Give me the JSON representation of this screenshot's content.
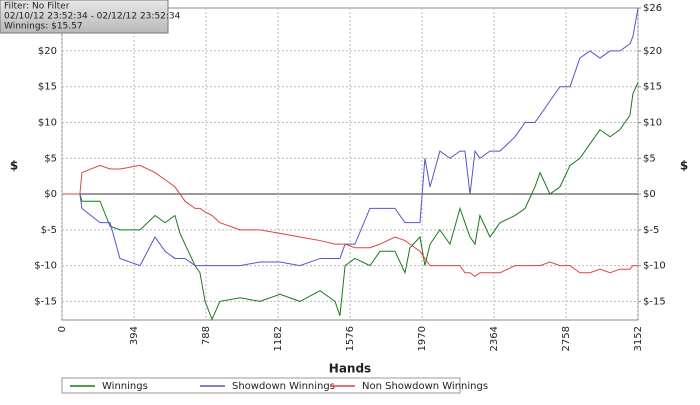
{
  "chart_data": {
    "type": "line",
    "info": [
      "Filter: No Filter",
      "02/10/12 23:52:34 - 02/12/12 23:52:34",
      "Winnings: $15.57"
    ],
    "xlabel": "Hands",
    "ylabel": "$",
    "y2label": "$",
    "x": [
      0,
      98,
      109,
      208,
      263,
      317,
      427,
      509,
      564,
      618,
      646,
      673,
      728,
      755,
      783,
      821,
      864,
      974,
      1083,
      1193,
      1302,
      1412,
      1494,
      1521,
      1549,
      1603,
      1685,
      1740,
      1822,
      1877,
      1904,
      1959,
      1986,
      2014,
      2068,
      2123,
      2178,
      2205,
      2233,
      2260,
      2287,
      2342,
      2397,
      2479,
      2534,
      2588,
      2616,
      2670,
      2725,
      2780,
      2834,
      2889,
      2944,
      2999,
      3053,
      3108,
      3124,
      3152
    ],
    "series": [
      {
        "name": "Winnings",
        "color": "#1a7a1a",
        "values": [
          0,
          0,
          -1,
          -1,
          -4.5,
          -5,
          -5,
          -3,
          -4,
          -3,
          -5.5,
          -7,
          -10,
          -11,
          -15,
          -17.5,
          -15,
          -14.5,
          -15,
          -14,
          -15,
          -13.5,
          -15,
          -17,
          -10,
          -9,
          -10,
          -8,
          -8,
          -11,
          -7.5,
          -6,
          -10,
          -7,
          -5,
          -7,
          -2,
          -4,
          -6,
          -7,
          -3,
          -6,
          -4,
          -3,
          -2,
          1,
          3,
          0,
          1,
          4,
          5,
          7,
          9,
          8,
          9,
          11,
          14,
          15.57
        ]
      },
      {
        "name": "Showdown Winnings",
        "color": "#5555cc",
        "values": [
          0,
          0,
          -2,
          -4,
          -4,
          -9,
          -10,
          -6,
          -8,
          -9,
          -9,
          -9,
          -10,
          -10,
          -10,
          -10,
          -10,
          -10,
          -9.5,
          -9.5,
          -10,
          -9,
          -9,
          -9,
          -7,
          -7,
          -2,
          -2,
          -2,
          -4,
          -4,
          -4,
          5,
          1,
          6,
          5,
          6,
          6,
          0,
          6,
          5,
          6,
          6,
          8,
          10,
          10,
          11,
          13,
          15,
          15,
          19,
          20,
          19,
          20,
          20,
          21,
          22,
          26
        ]
      },
      {
        "name": "Non Showdown Winnings",
        "color": "#dd4444",
        "values": [
          0,
          0,
          3,
          4,
          3.5,
          3.5,
          4,
          3,
          2,
          1,
          0,
          -1,
          -2,
          -2,
          -2.5,
          -3,
          -4,
          -5,
          -5,
          -5.5,
          -6,
          -6.5,
          -7,
          -7,
          -7,
          -7.5,
          -7.5,
          -7,
          -6,
          -6.5,
          -7,
          -8,
          -9,
          -10,
          -10,
          -10,
          -10,
          -11,
          -11,
          -11.5,
          -11,
          -11,
          -11,
          -10,
          -10,
          -10,
          -10,
          -9.5,
          -10,
          -10,
          -11,
          -11,
          -10.5,
          -11,
          -10.5,
          -10.5,
          -10,
          -10
        ]
      }
    ],
    "xlim": [
      0,
      3152
    ],
    "xticks": [
      0,
      394,
      788,
      1182,
      1576,
      1970,
      2364,
      2758,
      3152
    ],
    "ylim": [
      -17.6,
      26
    ],
    "yticks": [
      {
        "value": -15,
        "label": "$-15"
      },
      {
        "value": -10,
        "label": "$-10"
      },
      {
        "value": -5,
        "label": "$-5"
      },
      {
        "value": 0,
        "label": "$0"
      },
      {
        "value": 5,
        "label": "$5"
      },
      {
        "value": 10,
        "label": "$10"
      },
      {
        "value": 15,
        "label": "$15"
      },
      {
        "value": 20,
        "label": "$20"
      }
    ],
    "y2lim": [
      -17.6,
      26
    ],
    "y2ticks": [
      {
        "value": -15,
        "label": "$-15"
      },
      {
        "value": -10,
        "label": "$-10"
      },
      {
        "value": -5,
        "label": "$-5"
      },
      {
        "value": 0,
        "label": "$0"
      },
      {
        "value": 5,
        "label": "$5"
      },
      {
        "value": 10,
        "label": "$10"
      },
      {
        "value": 15,
        "label": "$15"
      },
      {
        "value": 20,
        "label": "$20"
      },
      {
        "value": 26,
        "label": "$26"
      }
    ],
    "grid": true
  }
}
